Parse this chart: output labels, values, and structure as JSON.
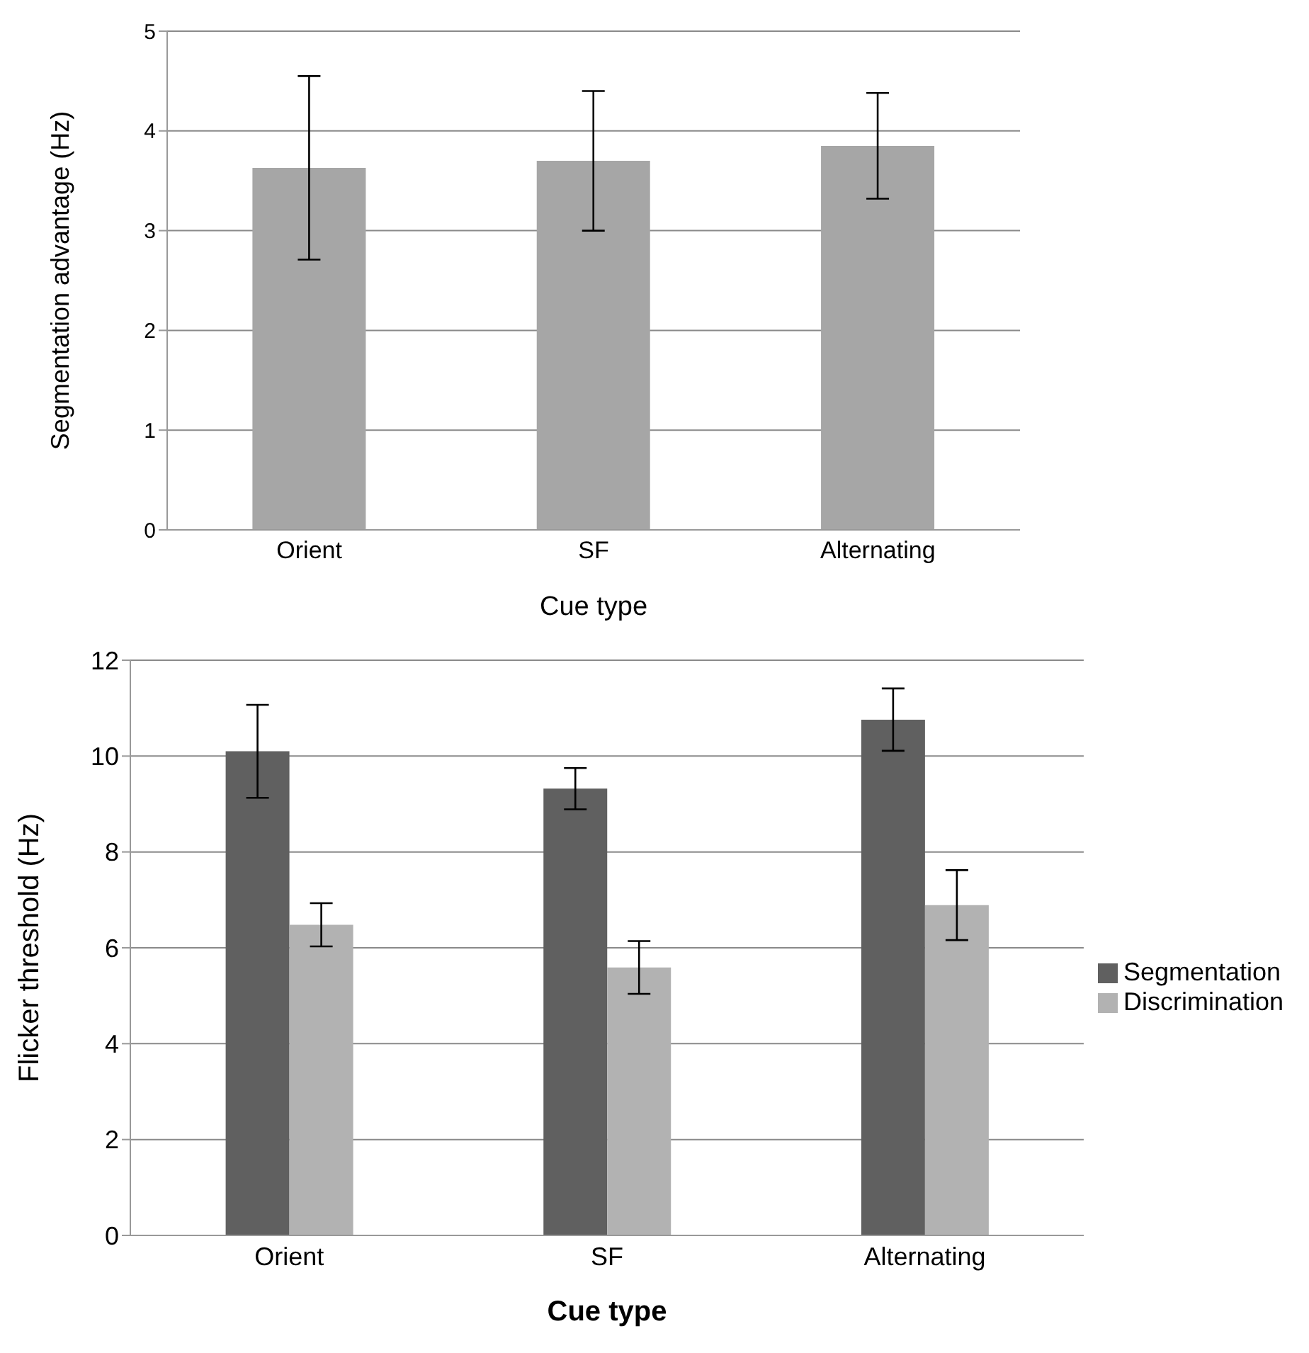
{
  "chart_data": [
    {
      "type": "bar",
      "xlabel": "Cue type",
      "ylabel": "Segmentation advantage (Hz)",
      "categories": [
        "Orient",
        "SF",
        "Alternating"
      ],
      "values": [
        3.63,
        3.7,
        3.85
      ],
      "errors": [
        0.92,
        0.7,
        0.53
      ],
      "color": "#a6a6a6",
      "ylim": [
        0,
        5
      ],
      "yticks": [
        0,
        1,
        2,
        3,
        4,
        5
      ],
      "grid": "y"
    },
    {
      "type": "bar",
      "xlabel": "Cue type",
      "ylabel": "Flicker threshold (Hz)",
      "categories": [
        "Orient",
        "SF",
        "Alternating"
      ],
      "series": [
        {
          "name": "Segmentation",
          "color": "#606060",
          "values": [
            10.1,
            9.32,
            10.76
          ],
          "errors": [
            0.97,
            0.43,
            0.65
          ]
        },
        {
          "name": "Discrimination",
          "color": "#b2b2b2",
          "values": [
            6.48,
            5.59,
            6.89
          ],
          "errors": [
            0.45,
            0.55,
            0.73
          ]
        }
      ],
      "ylim": [
        0,
        12
      ],
      "yticks": [
        0,
        2,
        4,
        6,
        8,
        10,
        12
      ],
      "grid": "y",
      "legend": "right"
    }
  ]
}
